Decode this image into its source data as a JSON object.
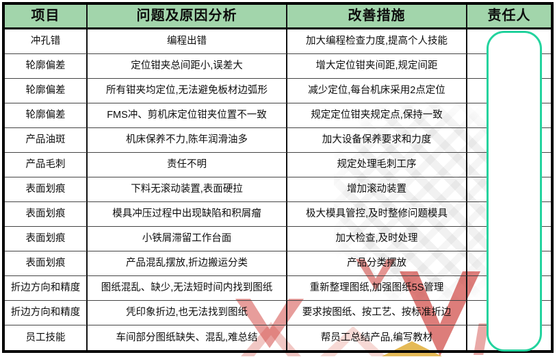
{
  "table": {
    "headers": [
      "项目",
      "问题及原因分析",
      "改善措施",
      "责任人"
    ],
    "rows": [
      {
        "item": "冲孔错",
        "problem": "编程出错",
        "measure": "加大编程检查力度,提高个人技能",
        "owner": ""
      },
      {
        "item": "轮廓偏差",
        "problem": "定位钳夹总间距小,误差大",
        "measure": "增大定位钳夹间距,规定间距",
        "owner": ""
      },
      {
        "item": "轮廓偏差",
        "problem": "所有钳夹均定位,无法避免板材边弧形",
        "measure": "减少定位,每台机床采用2点定位",
        "owner": ""
      },
      {
        "item": "轮廓偏差",
        "problem": "FMS冲、剪机床定位钳夹位置不一致",
        "measure": "规定定位钳夹规定点,保持一致",
        "owner": ""
      },
      {
        "item": "产品油斑",
        "problem": "机床保养不力,陈年润滑油多",
        "measure": "加大设备保养要求和力度",
        "owner": ""
      },
      {
        "item": "产品毛刺",
        "problem": "责任不明",
        "measure": "规定处理毛刺工序",
        "owner": ""
      },
      {
        "item": "表面划痕",
        "problem": "下料无滚动装置,表面硬拉",
        "measure": "增加滚动装置",
        "owner": ""
      },
      {
        "item": "表面划痕",
        "problem": "模具冲压过程中出现缺陷和积屑瘤",
        "measure": "极大模具管控,及时整修问题模具",
        "owner": ""
      },
      {
        "item": "表面划痕",
        "problem": "小铁屑滞留工作台面",
        "measure": "加大检查,及时处理",
        "owner": ""
      },
      {
        "item": "表面划痕",
        "problem": "产品混乱摆放,折边搬运分类",
        "measure": "产品分类摆放",
        "owner": ""
      },
      {
        "item": "折边方向和精度",
        "problem": "图纸混乱、缺少,无法短时间内找到图纸",
        "measure": "重新整理图纸,加强图纸5S管理",
        "owner": ""
      },
      {
        "item": "折边方向和精度",
        "problem": "凭印象折边,也无法找到图纸",
        "measure": "要求按图纸、按工艺、按标准折边",
        "owner": ""
      },
      {
        "item": "员工技能",
        "problem": "车间部分图纸缺失、混乱,难总结",
        "measure": "帮员工总结产品,编写教材",
        "owner": ""
      }
    ]
  },
  "colors": {
    "header_bg": "#a2d5ab",
    "grid_dark": "#111111",
    "grid_mid": "#454545",
    "highlight": "#23d39e",
    "watermark_red": "#c62621",
    "watermark_yellow": "#dea728"
  }
}
